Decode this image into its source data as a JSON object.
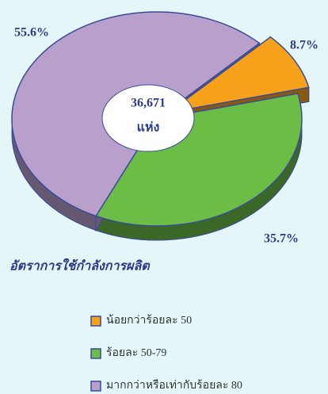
{
  "chart_data": {
    "type": "pie",
    "subtitle": "อัตราการใช้กำลังการผลิต",
    "annotations": [
      "36,671",
      "แห่ง"
    ],
    "categories": [
      "น้อยกว่าร้อยละ 50",
      "ร้อยละ 50-79",
      "มากกว่าหรือเท่ากับร้อยละ 80"
    ],
    "values": [
      8.7,
      35.7,
      55.6
    ],
    "value_labels": [
      "8.7%",
      "35.7%",
      "55.6%"
    ],
    "colors": [
      "#f7a11a",
      "#6cbd45",
      "#b9a0cc"
    ],
    "legend": "bottom"
  }
}
